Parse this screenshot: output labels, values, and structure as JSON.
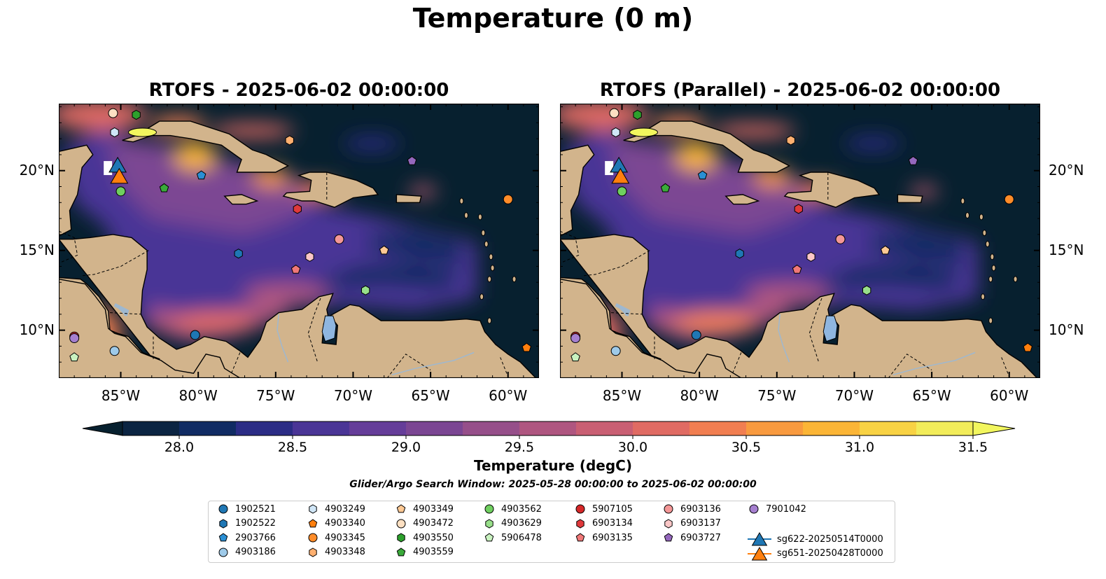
{
  "suptitle": "Temperature (0 m)",
  "panels": [
    {
      "title": "RTOFS - 2025-06-02 00:00:00"
    },
    {
      "title": "RTOFS (Parallel) - 2025-06-02 00:00:00"
    }
  ],
  "map": {
    "lon_range": [
      -89,
      -58
    ],
    "lat_range": [
      7,
      24.2
    ],
    "x_ticks": [
      "85°W",
      "80°W",
      "75°W",
      "70°W",
      "65°W",
      "60°W"
    ],
    "x_tick_values": [
      -85,
      -80,
      -75,
      -70,
      -65,
      -60
    ],
    "y_ticks": [
      "20°N",
      "15°N",
      "10°N"
    ],
    "y_tick_values": [
      20,
      15,
      10
    ],
    "land_color": "#d2b48c",
    "ocean_dark_color": "#07202f",
    "lake_color": "#8fb6e0"
  },
  "colorbar": {
    "label": "Temperature (degC)",
    "min": 27.75,
    "max": 31.5,
    "ticks": [
      "28.0",
      "28.5",
      "29.0",
      "29.5",
      "30.0",
      "30.5",
      "31.0",
      "31.5"
    ],
    "tick_values": [
      28.0,
      28.5,
      29.0,
      29.5,
      30.0,
      30.5,
      31.0,
      31.5
    ],
    "colors": [
      "#0b2442",
      "#102b63",
      "#2b2c85",
      "#4a3596",
      "#653d99",
      "#7b4693",
      "#964f8a",
      "#af5680",
      "#c95f73",
      "#e06b63",
      "#f17e51",
      "#f89a3f",
      "#fbb536",
      "#f8d244",
      "#f2ec5a"
    ],
    "under_color": "#07202f",
    "over_color": "#f2f65e"
  },
  "search_window": "Glider/Argo Search Window: 2025-05-28 00:00:00 to 2025-06-02 00:00:00",
  "legend": [
    {
      "label": "1902521",
      "marker": "circle",
      "color": "#1f77b4"
    },
    {
      "label": "1902522",
      "marker": "hexagon",
      "color": "#1f77b4"
    },
    {
      "label": "2903766",
      "marker": "pentagon",
      "color": "#2a8fd4"
    },
    {
      "label": "4903186",
      "marker": "circle",
      "color": "#9ecae9"
    },
    {
      "label": "4903249",
      "marker": "hexagon",
      "color": "#d0e6f7"
    },
    {
      "label": "4903340",
      "marker": "pentagon",
      "color": "#ff7f0e"
    },
    {
      "label": "4903345",
      "marker": "circle",
      "color": "#ff8c29"
    },
    {
      "label": "4903348",
      "marker": "hexagon",
      "color": "#ffb070"
    },
    {
      "label": "4903349",
      "marker": "pentagon",
      "color": "#ffc994"
    },
    {
      "label": "4903472",
      "marker": "circle",
      "color": "#fde0c2"
    },
    {
      "label": "4903550",
      "marker": "hexagon",
      "color": "#2ca02c"
    },
    {
      "label": "4903559",
      "marker": "pentagon",
      "color": "#3aaa3a"
    },
    {
      "label": "4903562",
      "marker": "circle",
      "color": "#6fcf5f"
    },
    {
      "label": "4903629",
      "marker": "hexagon",
      "color": "#98df8a"
    },
    {
      "label": "5906478",
      "marker": "pentagon",
      "color": "#c9f2c0"
    },
    {
      "label": "5907105",
      "marker": "circle",
      "color": "#d62728"
    },
    {
      "label": "6903134",
      "marker": "hexagon",
      "color": "#e0393b"
    },
    {
      "label": "6903135",
      "marker": "pentagon",
      "color": "#f07878"
    },
    {
      "label": "6903136",
      "marker": "circle",
      "color": "#f49797"
    },
    {
      "label": "6903137",
      "marker": "hexagon",
      "color": "#fbc7c7"
    },
    {
      "label": "6903727",
      "marker": "pentagon",
      "color": "#9467bd"
    },
    {
      "label": "7901042",
      "marker": "circle",
      "color": "#a57fcf"
    },
    {
      "label": "sg622-20250514T0000",
      "marker": "triangle",
      "color": "#1f77b4"
    },
    {
      "label": "sg651-20250428T0000",
      "marker": "triangle",
      "color": "#ff7f0e"
    }
  ],
  "floats": [
    {
      "id": "1902521",
      "lon": -80.2,
      "lat": 9.7
    },
    {
      "id": "1902522",
      "lon": -77.4,
      "lat": 14.8
    },
    {
      "id": "2903766",
      "lon": -79.8,
      "lat": 19.7
    },
    {
      "id": "4903186",
      "lon": -85.4,
      "lat": 8.7
    },
    {
      "id": "4903249",
      "lon": -85.4,
      "lat": 22.4
    },
    {
      "id": "4903340",
      "lon": -58.8,
      "lat": 8.9
    },
    {
      "id": "4903345",
      "lon": -60.0,
      "lat": 18.2
    },
    {
      "id": "4903348",
      "lon": -74.1,
      "lat": 21.9
    },
    {
      "id": "4903349",
      "lon": -68.0,
      "lat": 15.0
    },
    {
      "id": "4903472",
      "lon": -85.5,
      "lat": 23.6
    },
    {
      "id": "4903550",
      "lon": -84.0,
      "lat": 23.5
    },
    {
      "id": "4903559",
      "lon": -82.2,
      "lat": 18.9
    },
    {
      "id": "4903562",
      "lon": -85.0,
      "lat": 18.7
    },
    {
      "id": "4903629",
      "lon": -69.2,
      "lat": 12.5
    },
    {
      "id": "5906478",
      "lon": -88.0,
      "lat": 8.3
    },
    {
      "id": "5907105",
      "lon": -88.0,
      "lat": 9.6
    },
    {
      "id": "6903134",
      "lon": -73.6,
      "lat": 17.6
    },
    {
      "id": "6903135",
      "lon": -73.7,
      "lat": 13.8
    },
    {
      "id": "6903136",
      "lon": -70.9,
      "lat": 15.7
    },
    {
      "id": "6903137",
      "lon": -72.8,
      "lat": 14.6
    },
    {
      "id": "6903727",
      "lon": -66.2,
      "lat": 20.6
    },
    {
      "id": "7901042",
      "lon": -88.0,
      "lat": 9.5
    }
  ],
  "gliders": [
    {
      "id": "sg622-20250514T0000",
      "lon": -85.2,
      "lat": 20.3
    },
    {
      "id": "sg651-20250428T0000",
      "lon": -85.1,
      "lat": 19.6
    }
  ]
}
